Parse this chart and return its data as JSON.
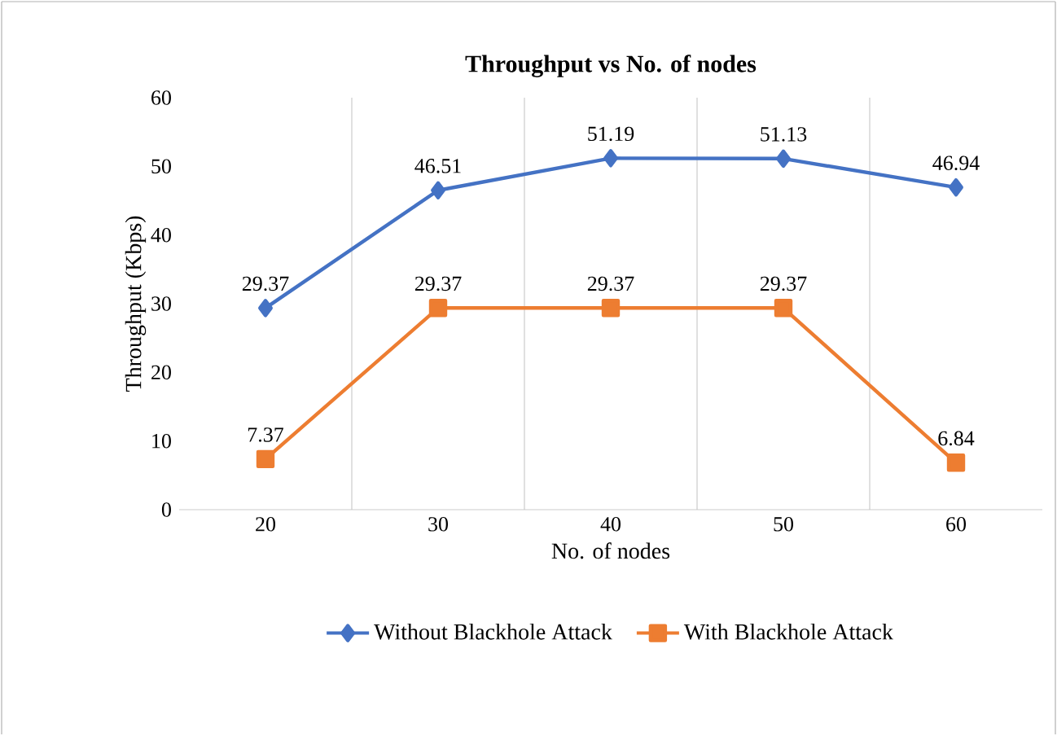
{
  "chart_data": {
    "type": "line",
    "title": "Throughput vs No. of nodes",
    "xlabel": "No. of nodes",
    "ylabel": "Throughput (Kbps)",
    "categories": [
      "20",
      "30",
      "40",
      "50",
      "60"
    ],
    "series": [
      {
        "name": "Without Blackhole Attack",
        "color": "#4472c4",
        "marker": "diamond",
        "values": [
          29.37,
          46.51,
          51.19,
          51.13,
          46.94
        ]
      },
      {
        "name": "With Blackhole Attack",
        "color": "#ed7d31",
        "marker": "square",
        "values": [
          7.37,
          29.37,
          29.37,
          29.37,
          6.84
        ]
      }
    ],
    "ylim": [
      0,
      60
    ],
    "yticks": [
      0,
      10,
      20,
      30,
      40,
      50,
      60
    ],
    "grid": "x",
    "legend": "bottom",
    "data_labels": true,
    "line_style": "solid"
  }
}
